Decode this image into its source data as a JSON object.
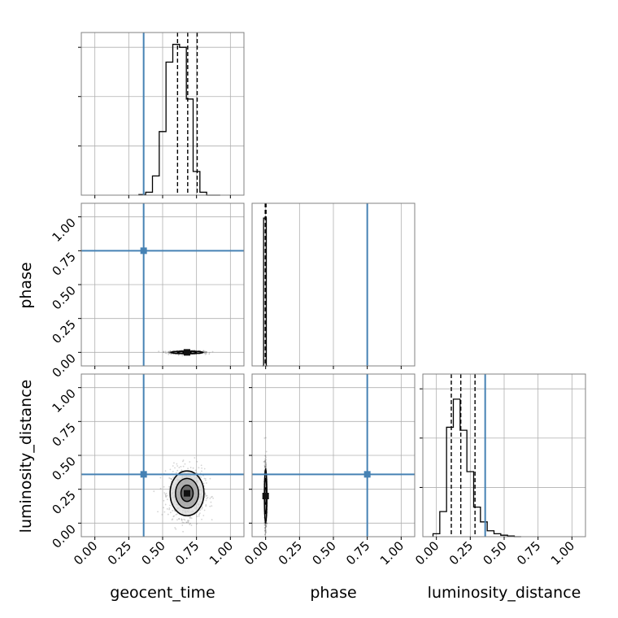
{
  "chart_data": {
    "type": "corner",
    "parameters": [
      "geocent_time",
      "phase",
      "luminosity_distance"
    ],
    "axis_range": [
      -0.1,
      1.1
    ],
    "tick_values": [
      0.0,
      0.25,
      0.5,
      0.75,
      1.0
    ],
    "tick_labels": [
      "0.00",
      "0.25",
      "0.50",
      "0.75",
      "1.00"
    ],
    "grid": true,
    "truth_color": "#4682b4",
    "line_color": "#000000",
    "injection": {
      "geocent_time": 0.36,
      "phase": 0.75,
      "luminosity_distance": 0.36
    },
    "diagonal": [
      {
        "parameter": "geocent_time",
        "bin_edges": [
          0.325,
          0.375,
          0.425,
          0.475,
          0.525,
          0.575,
          0.625,
          0.675,
          0.725,
          0.775,
          0.825,
          0.875,
          0.925
        ],
        "counts": [
          0.004,
          0.02,
          0.13,
          0.43,
          0.9,
          1.02,
          1.0,
          0.65,
          0.16,
          0.02,
          0.0,
          0.0
        ],
        "quantiles": [
          0.61,
          0.685,
          0.755
        ],
        "ytick_values": [
          0,
          0.333,
          0.667,
          1.0
        ]
      },
      {
        "parameter": "phase",
        "bin_edges": [
          -0.025,
          -0.015,
          -0.005,
          0.005,
          0.015
        ],
        "counts": [
          0.0,
          1.0,
          1.0,
          0.0
        ],
        "quantiles": [
          -0.003,
          0.0,
          0.003
        ],
        "ytick_values": []
      },
      {
        "parameter": "luminosity_distance",
        "bin_edges": [
          -0.025,
          0.025,
          0.075,
          0.125,
          0.175,
          0.225,
          0.275,
          0.325,
          0.375,
          0.425,
          0.475,
          0.525,
          0.575,
          0.625
        ],
        "counts": [
          0.02,
          0.17,
          0.74,
          0.93,
          0.72,
          0.44,
          0.2,
          0.1,
          0.04,
          0.02,
          0.01,
          0.005,
          0.0
        ],
        "quantiles": [
          0.11,
          0.18,
          0.285
        ],
        "ytick_values": [
          0,
          0.333,
          0.667,
          1.0
        ]
      }
    ],
    "off_diagonal": [
      {
        "x_parameter": "geocent_time",
        "y_parameter": "phase",
        "center": [
          0.68,
          0.0
        ],
        "spread": [
          0.06,
          0.006
        ],
        "contours": [
          {
            "rx": 0.03,
            "ry": 0.004
          },
          {
            "rx": 0.07,
            "ry": 0.006
          },
          {
            "rx": 0.12,
            "ry": 0.008
          }
        ]
      },
      {
        "x_parameter": "geocent_time",
        "y_parameter": "luminosity_distance",
        "center": [
          0.68,
          0.22
        ],
        "spread": [
          0.065,
          0.09
        ],
        "contours": [
          {
            "rx": 0.045,
            "ry": 0.06
          },
          {
            "rx": 0.085,
            "ry": 0.11
          },
          {
            "rx": 0.125,
            "ry": 0.165
          }
        ]
      },
      {
        "x_parameter": "phase",
        "y_parameter": "luminosity_distance",
        "center": [
          0.0,
          0.2
        ],
        "spread": [
          0.004,
          0.12
        ],
        "contours": [
          {
            "rx": 0.004,
            "ry": 0.06
          },
          {
            "rx": 0.006,
            "ry": 0.13
          },
          {
            "rx": 0.008,
            "ry": 0.2
          }
        ]
      }
    ]
  }
}
